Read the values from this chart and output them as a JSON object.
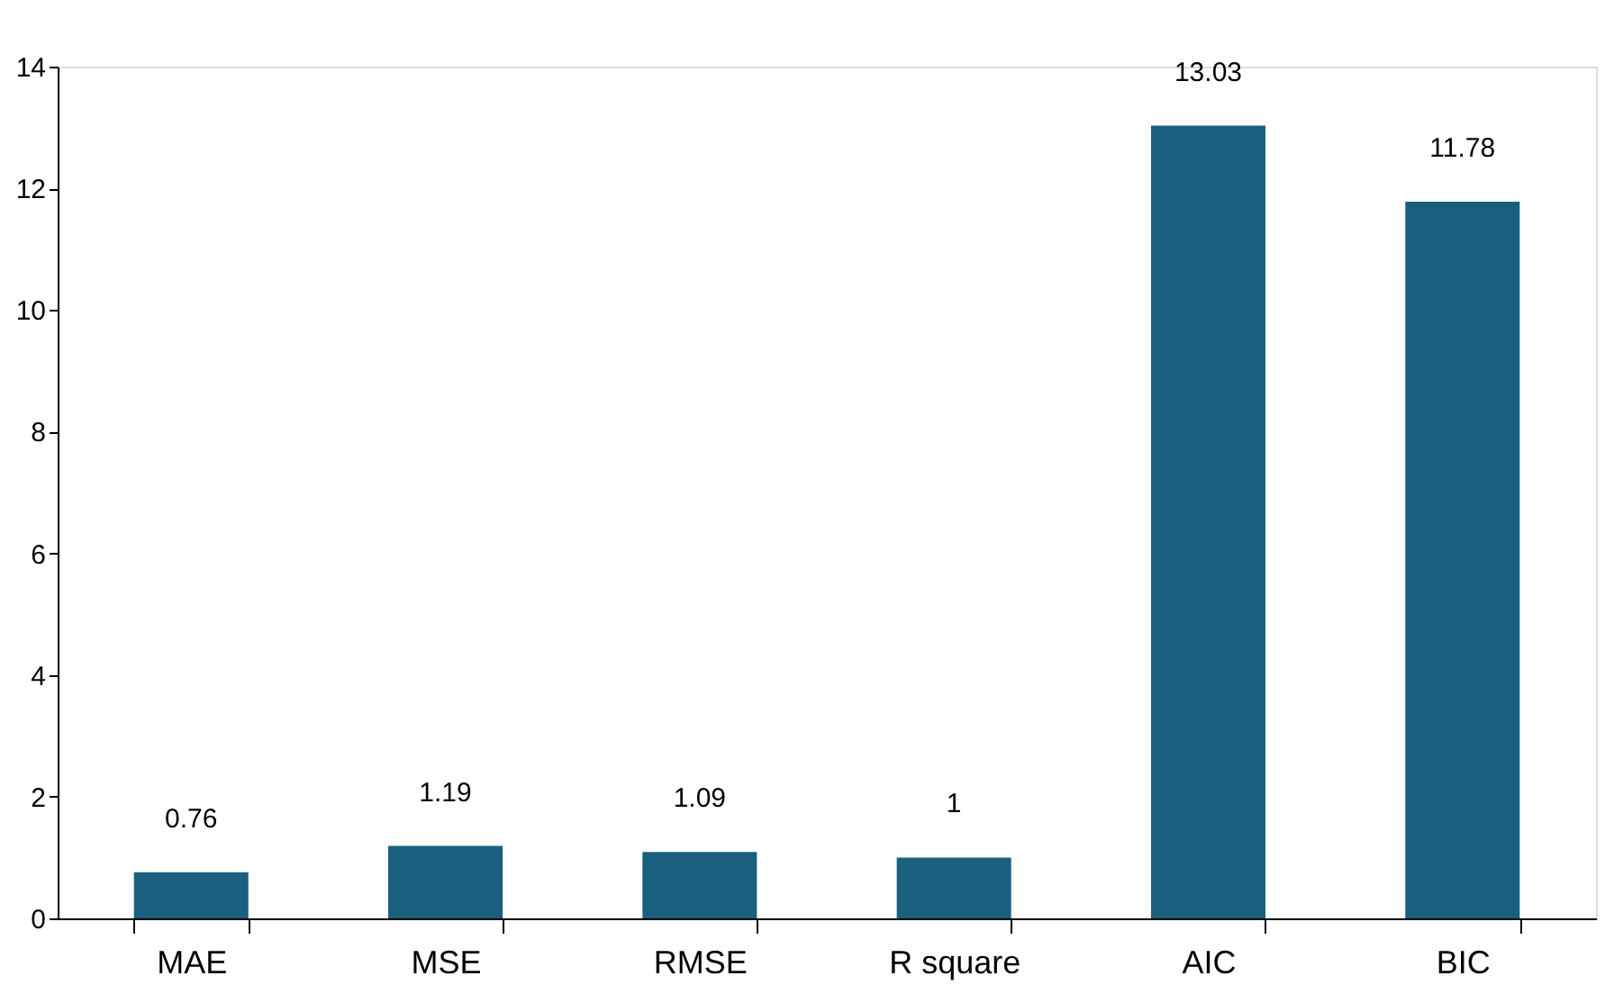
{
  "chart_data": {
    "type": "bar",
    "categories": [
      "MAE",
      "MSE",
      "RMSE",
      "R square",
      "AIC",
      "BIC"
    ],
    "values": [
      0.76,
      1.19,
      1.09,
      1,
      13.03,
      11.78
    ],
    "color": "#1a5f7e",
    "ylim": [
      0,
      14
    ],
    "yticks": [
      0,
      2,
      4,
      6,
      8,
      10,
      12,
      14
    ],
    "data_labels": true,
    "grid": false
  }
}
